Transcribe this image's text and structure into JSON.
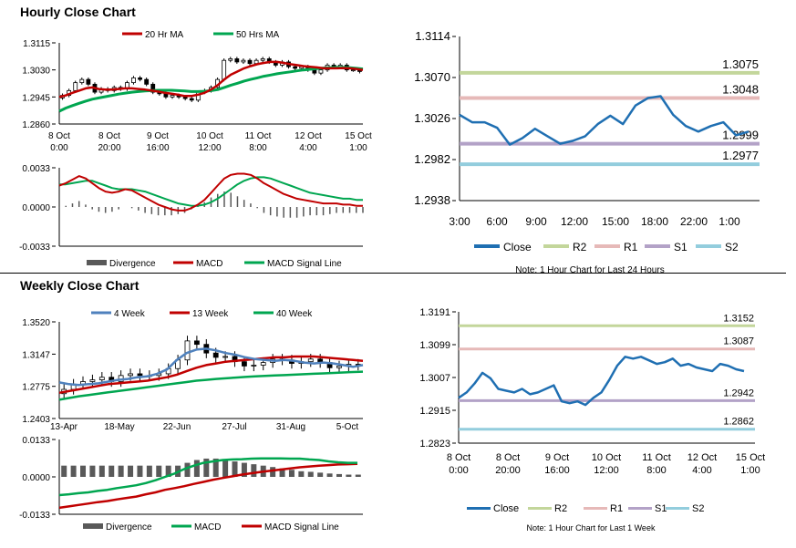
{
  "sections": {
    "hourly_title": "Hourly Close Chart",
    "weekly_title": "Weekly Close Chart"
  },
  "chart_data": [
    {
      "id": "hourly-price",
      "type": "candlestick",
      "title": "",
      "legend": [
        "20 Hr MA",
        "50 Hrs MA"
      ],
      "legend_colors": [
        "#c00000",
        "#00a650"
      ],
      "y_ticks": [
        "1.3115",
        "1.3030",
        "1.2945",
        "1.2860"
      ],
      "ylim": [
        1.286,
        1.3115
      ],
      "x_labels": [
        [
          "8 Oct",
          "0:00"
        ],
        [
          "8 Oct",
          "20:00"
        ],
        [
          "9 Oct",
          "16:00"
        ],
        [
          "10 Oct",
          "12:00"
        ],
        [
          "11 Oct",
          "8:00"
        ],
        [
          "12 Oct",
          "4:00"
        ],
        [
          "15 Oct",
          "1:00"
        ]
      ],
      "close": [
        1.295,
        1.2965,
        1.299,
        1.3,
        1.2985,
        1.296,
        1.297,
        1.2965,
        1.2975,
        1.297,
        1.299,
        1.3005,
        1.3,
        1.2985,
        1.296,
        1.2955,
        1.2945,
        1.295,
        1.2945,
        1.294,
        1.2935,
        1.296,
        1.2965,
        1.2975,
        1.3,
        1.306,
        1.3065,
        1.3055,
        1.306,
        1.305,
        1.306,
        1.3065,
        1.3055,
        1.3045,
        1.3055,
        1.304,
        1.3035,
        1.304,
        1.303,
        1.302,
        1.303,
        1.3045,
        1.304,
        1.3045,
        1.303,
        1.303,
        1.3025
      ],
      "ma20": [
        1.2945,
        1.295,
        1.2958,
        1.2965,
        1.2972,
        1.2975,
        1.297,
        1.2968,
        1.2968,
        1.297,
        1.2972,
        1.2972,
        1.297,
        1.2968,
        1.2965,
        1.2962,
        1.2958,
        1.2955,
        1.2952,
        1.2948,
        1.2948,
        1.2952,
        1.2958,
        1.2968,
        1.2982,
        1.3,
        1.3015,
        1.3025,
        1.3035,
        1.3042,
        1.3048,
        1.3052,
        1.3055,
        1.3055,
        1.3052,
        1.3048,
        1.3045,
        1.3042,
        1.304,
        1.3038,
        1.3035,
        1.3035,
        1.3035,
        1.3036,
        1.3035,
        1.3033,
        1.303
      ],
      "ma50": [
        1.29,
        1.291,
        1.2918,
        1.2925,
        1.2932,
        1.2938,
        1.2942,
        1.2946,
        1.295,
        1.2954,
        1.2957,
        1.296,
        1.2962,
        1.2964,
        1.2965,
        1.2966,
        1.2966,
        1.2966,
        1.2965,
        1.2964,
        1.2962,
        1.2962,
        1.2963,
        1.2965,
        1.2968,
        1.2975,
        1.2982,
        1.2988,
        1.2995,
        1.3,
        1.3005,
        1.301,
        1.3014,
        1.3018,
        1.3021,
        1.3024,
        1.3027,
        1.303,
        1.3032,
        1.3034,
        1.3036,
        1.3037,
        1.3038,
        1.3038,
        1.3037,
        1.3035,
        1.3033
      ]
    },
    {
      "id": "hourly-macd",
      "type": "line",
      "legend": [
        "Divergence",
        "MACD",
        "MACD Signal Line"
      ],
      "legend_colors": [
        "#595959",
        "#c00000",
        "#00a650"
      ],
      "y_ticks": [
        "0.0033",
        "0.0000",
        "-0.0033"
      ],
      "ylim": [
        -0.0033,
        0.0033
      ],
      "macd": [
        0.0018,
        0.002,
        0.0023,
        0.0026,
        0.0024,
        0.002,
        0.0016,
        0.0013,
        0.0012,
        0.0013,
        0.0015,
        0.0014,
        0.0011,
        0.0008,
        0.0005,
        0.0002,
        0.0,
        -0.0002,
        -0.0003,
        -0.0003,
        -0.0001,
        0.0002,
        0.0006,
        0.0012,
        0.0018,
        0.0024,
        0.0027,
        0.0028,
        0.0028,
        0.0027,
        0.0024,
        0.002,
        0.0017,
        0.0014,
        0.0011,
        0.0009,
        0.0007,
        0.0006,
        0.0005,
        0.0004,
        0.0003,
        0.0003,
        0.0003,
        0.0002,
        0.0002,
        0.0001,
        0.0001
      ],
      "signal": [
        0.0019,
        0.0019,
        0.002,
        0.0021,
        0.0022,
        0.0022,
        0.002,
        0.0018,
        0.0016,
        0.0015,
        0.0015,
        0.0015,
        0.0014,
        0.0013,
        0.0011,
        0.0009,
        0.0007,
        0.0005,
        0.0003,
        0.0002,
        0.0001,
        0.0001,
        0.0002,
        0.0004,
        0.0007,
        0.0011,
        0.0015,
        0.0019,
        0.0022,
        0.0024,
        0.0025,
        0.0025,
        0.0024,
        0.0022,
        0.002,
        0.0018,
        0.0016,
        0.0014,
        0.0012,
        0.0011,
        0.001,
        0.0009,
        0.0008,
        0.0007,
        0.0007,
        0.0006,
        0.0006
      ]
    },
    {
      "id": "hourly-levels",
      "type": "line",
      "y_ticks": [
        "1.3114",
        "1.3070",
        "1.3026",
        "1.2982",
        "1.2938"
      ],
      "ylim": [
        1.2938,
        1.3114
      ],
      "x_labels": [
        "3:00",
        "6:00",
        "9:00",
        "12:00",
        "15:00",
        "18:00",
        "22:00",
        "1:00"
      ],
      "close": [
        1.303,
        1.3022,
        1.3022,
        1.3016,
        1.2998,
        1.3005,
        1.3015,
        1.3007,
        1.2999,
        1.3002,
        1.3007,
        1.302,
        1.3029,
        1.302,
        1.304,
        1.3048,
        1.305,
        1.303,
        1.3018,
        1.3012,
        1.3018,
        1.3022,
        1.3008,
        1.3012
      ],
      "levels": [
        {
          "name": "R2",
          "value": 1.3075,
          "label": "1.3075",
          "color": "#c3d69b"
        },
        {
          "name": "R1",
          "value": 1.3048,
          "label": "1.3048",
          "color": "#e6b9b8"
        },
        {
          "name": "S1",
          "value": 1.2999,
          "label": "1.2999",
          "color": "#b3a2c7"
        },
        {
          "name": "S2",
          "value": 1.2977,
          "label": "1.2977",
          "color": "#93cddd"
        }
      ],
      "legend": [
        "Close",
        "R2",
        "R1",
        "S1",
        "S2"
      ],
      "note": "Note: 1 Hour Chart for Last 24 Hours"
    },
    {
      "id": "weekly-price",
      "type": "candlestick",
      "legend": [
        "4 Week",
        "13 Week",
        "40 Week"
      ],
      "legend_colors": [
        "#4f81bd",
        "#c00000",
        "#00a650"
      ],
      "y_ticks": [
        "1.3520",
        "1.3147",
        "1.2775",
        "1.2403"
      ],
      "ylim": [
        1.2403,
        1.352
      ],
      "x_labels": [
        "13-Apr",
        "18-May",
        "22-Jun",
        "27-Jul",
        "31-Aug",
        "5-Oct"
      ],
      "open": [
        1.269,
        1.274,
        1.28,
        1.283,
        1.285,
        1.288,
        1.283,
        1.29,
        1.292,
        1.29,
        1.29,
        1.292,
        1.298,
        1.308,
        1.33,
        1.326,
        1.316,
        1.311,
        1.312,
        1.306,
        1.301,
        1.302,
        1.305,
        1.309,
        1.308,
        1.304,
        1.306,
        1.309,
        1.305,
        1.299,
        1.301,
        1.303
      ],
      "close": [
        1.274,
        1.28,
        1.283,
        1.285,
        1.288,
        1.283,
        1.29,
        1.292,
        1.29,
        1.29,
        1.292,
        1.298,
        1.308,
        1.33,
        1.326,
        1.316,
        1.311,
        1.312,
        1.306,
        1.301,
        1.302,
        1.305,
        1.309,
        1.308,
        1.304,
        1.306,
        1.309,
        1.305,
        1.299,
        1.301,
        1.303,
        1.302
      ],
      "ma4": [
        1.282,
        1.28,
        1.279,
        1.28,
        1.281,
        1.283,
        1.285,
        1.286,
        1.288,
        1.289,
        1.292,
        1.297,
        1.308,
        1.316,
        1.32,
        1.321,
        1.319,
        1.316,
        1.314,
        1.311,
        1.309,
        1.308,
        1.307,
        1.308,
        1.307,
        1.305,
        1.304,
        1.305,
        1.304,
        1.302,
        1.3,
        1.302
      ],
      "ma13": [
        1.27,
        1.272,
        1.274,
        1.276,
        1.278,
        1.28,
        1.281,
        1.282,
        1.283,
        1.284,
        1.286,
        1.288,
        1.291,
        1.295,
        1.299,
        1.302,
        1.304,
        1.306,
        1.307,
        1.308,
        1.309,
        1.31,
        1.311,
        1.311,
        1.312,
        1.312,
        1.312,
        1.311,
        1.31,
        1.309,
        1.308,
        1.307
      ],
      "ma40": [
        1.262,
        1.264,
        1.266,
        1.2675,
        1.269,
        1.2705,
        1.272,
        1.2735,
        1.275,
        1.2765,
        1.278,
        1.2795,
        1.281,
        1.2825,
        1.284,
        1.285,
        1.286,
        1.2868,
        1.2876,
        1.2884,
        1.289,
        1.2895,
        1.29,
        1.2905,
        1.291,
        1.2915,
        1.292,
        1.2925,
        1.293,
        1.2935,
        1.294,
        1.2945
      ]
    },
    {
      "id": "weekly-macd",
      "type": "line",
      "legend": [
        "Divergence",
        "MACD",
        "MACD Signal Line"
      ],
      "legend_colors": [
        "#595959",
        "#00a650",
        "#c00000"
      ],
      "y_ticks": [
        "0.0133",
        "0.0000",
        "-0.0133"
      ],
      "ylim": [
        -0.0133,
        0.0133
      ],
      "divergence": [
        0.004,
        0.004,
        0.004,
        0.004,
        0.004,
        0.004,
        0.004,
        0.004,
        0.004,
        0.004,
        0.004,
        0.004,
        0.004,
        0.005,
        0.006,
        0.0065,
        0.0065,
        0.006,
        0.0055,
        0.005,
        0.0045,
        0.004,
        0.0035,
        0.003,
        0.0025,
        0.002,
        0.0018,
        0.0015,
        0.0012,
        0.001,
        0.0008,
        0.0008
      ],
      "macd": [
        -0.0065,
        -0.0062,
        -0.0058,
        -0.0055,
        -0.005,
        -0.0046,
        -0.004,
        -0.0035,
        -0.003,
        -0.0022,
        -0.0012,
        0.0,
        0.0012,
        0.0028,
        0.004,
        0.005,
        0.0055,
        0.006,
        0.0062,
        0.0063,
        0.0065,
        0.0066,
        0.0066,
        0.0066,
        0.0065,
        0.0065,
        0.0062,
        0.006,
        0.0055,
        0.0052,
        0.005,
        0.005
      ],
      "signal": [
        -0.011,
        -0.0105,
        -0.01,
        -0.0095,
        -0.009,
        -0.0086,
        -0.008,
        -0.0075,
        -0.007,
        -0.0062,
        -0.0055,
        -0.0046,
        -0.004,
        -0.0033,
        -0.0025,
        -0.0018,
        -0.001,
        -0.0004,
        0.0002,
        0.0008,
        0.0013,
        0.0018,
        0.0022,
        0.0026,
        0.003,
        0.0034,
        0.0037,
        0.004,
        0.0042,
        0.0044,
        0.0045,
        0.0046
      ]
    },
    {
      "id": "weekly-levels",
      "type": "line",
      "y_ticks": [
        "1.3191",
        "1.3099",
        "1.3007",
        "1.2915",
        "1.2823"
      ],
      "ylim": [
        1.2823,
        1.3191
      ],
      "x_labels": [
        [
          "8 Oct",
          "0:00"
        ],
        [
          "8 Oct",
          "20:00"
        ],
        [
          "9 Oct",
          "16:00"
        ],
        [
          "10 Oct",
          "12:00"
        ],
        [
          "11 Oct",
          "8:00"
        ],
        [
          "12 Oct",
          "4:00"
        ],
        [
          "15 Oct",
          "1:00"
        ]
      ],
      "close": [
        1.295,
        1.2965,
        1.299,
        1.302,
        1.3005,
        1.2975,
        1.297,
        1.2965,
        1.2975,
        1.296,
        1.2965,
        1.2975,
        1.2985,
        1.294,
        1.2935,
        1.294,
        1.293,
        1.295,
        1.2965,
        1.3,
        1.304,
        1.3065,
        1.306,
        1.3065,
        1.3055,
        1.3045,
        1.305,
        1.306,
        1.304,
        1.3045,
        1.3035,
        1.303,
        1.3025,
        1.3045,
        1.304,
        1.303,
        1.3025
      ],
      "levels": [
        {
          "name": "R2",
          "value": 1.3152,
          "label": "1.3152",
          "color": "#c3d69b"
        },
        {
          "name": "R1",
          "value": 1.3087,
          "label": "1.3087",
          "color": "#e6b9b8"
        },
        {
          "name": "S1",
          "value": 1.2942,
          "label": "1.2942",
          "color": "#b3a2c7"
        },
        {
          "name": "S2",
          "value": 1.2862,
          "label": "1.2862",
          "color": "#93cddd"
        }
      ],
      "legend": [
        "Close",
        "R2",
        "R1",
        "S1",
        "S2"
      ],
      "note": "Note: 1 Hour Chart for  Last 1 Week"
    }
  ]
}
